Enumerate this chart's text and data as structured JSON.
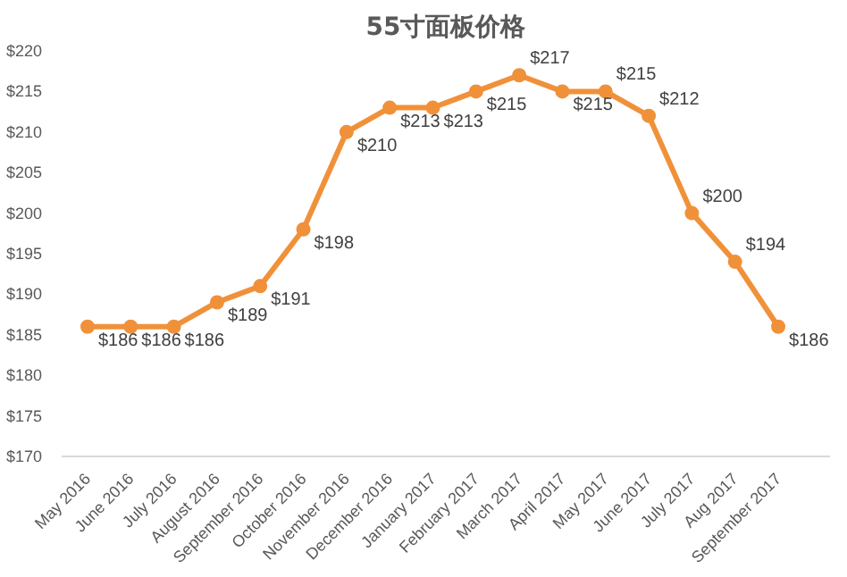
{
  "chart_data": {
    "type": "line",
    "title": "55寸面板价格",
    "categories": [
      "May 2016",
      "June 2016",
      "July 2016",
      "August 2016",
      "September 2016",
      "October 2016",
      "November 2016",
      "December 2016",
      "January 2017",
      "February 2017",
      "March 2017",
      "April 2017",
      "May 2017",
      "June 2017",
      "July 2017",
      "Aug 2017",
      "September 2017"
    ],
    "series": [
      {
        "color": "#f0913a",
        "values": [
          186,
          186,
          186,
          189,
          191,
          198,
          210,
          213,
          213,
          215,
          217,
          215,
          215,
          212,
          200,
          194,
          186
        ],
        "value_labels": [
          "$186",
          "$186",
          "$186",
          "$189",
          "$191",
          "$198",
          "$210",
          "$213",
          "$213",
          "$215",
          "$217",
          "$215",
          "$215",
          "$212",
          "$200",
          "$194",
          "$186"
        ]
      }
    ],
    "ylim": [
      170,
      220
    ],
    "yticks": [
      {
        "value": 170,
        "label": "$170"
      },
      {
        "value": 175,
        "label": "$175"
      },
      {
        "value": 180,
        "label": "$180"
      },
      {
        "value": 185,
        "label": "$185"
      },
      {
        "value": 190,
        "label": "$190"
      },
      {
        "value": 195,
        "label": "$195"
      },
      {
        "value": 200,
        "label": "$200"
      },
      {
        "value": 205,
        "label": "$205"
      },
      {
        "value": 210,
        "label": "$210"
      },
      {
        "value": 215,
        "label": "$215"
      },
      {
        "value": 220,
        "label": "$220"
      }
    ],
    "grid": false,
    "marker": "circle",
    "line_style": "solid"
  }
}
